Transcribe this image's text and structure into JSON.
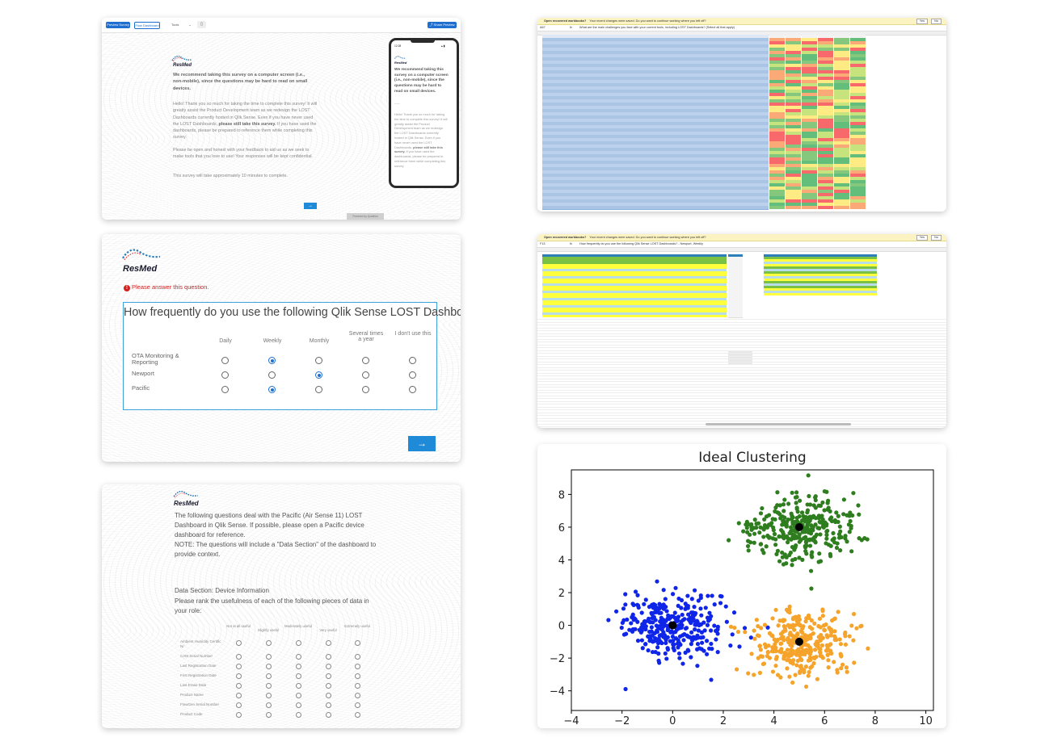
{
  "panel1": {
    "toolbar": {
      "preview_survey": "Preview Survey",
      "preview_dashboard": "Flow Dashboard",
      "device": "Tools",
      "share_preview": "Share Preview"
    },
    "brand": "ResMed",
    "heading": "We recommend taking this survey on a computer screen (i.e., non-mobile), since the questions may be hard to read on small devices.",
    "dashes": "-----",
    "intro_a": "Hello! Thank you so much for taking the time to complete this survey! It will greatly assist the Product Development team as we redesign the LOST Dashboards currently hosted in Qlik Sense. Even if you have never used the LOST Dashboards,",
    "intro_bold": "please still take this survey.",
    "intro_c": "If you have used the dashboards, please be prepared to reference them while completing this survey.",
    "para2": "Please be open and honest with your feedback to aid us as we seek to make tools that you love to use! Your responses will be kept confidential.",
    "para3": "This survey will take approximately 10 minutes to complete.",
    "next_arrow": "→",
    "footer_badge": "Powered by Qualtrics",
    "phone": {
      "time": "12:28",
      "brand": "ResMed",
      "heading": "We recommend taking this survey on a computer screen (i.e., non-mobile), since the questions may be hard to read on small devices.",
      "dashes": "-----",
      "intro_a": "Hello! Thank you so much for taking the time to complete this survey! It will greatly assist the Product Development team as we redesign the LOST Dashboards currently hosted in Qlik Sense. Even if you have never used the LOST Dashboards,",
      "intro_bold": "please still take this survey.",
      "intro_c": "If you have used the dashboards, please be prepared to reference them while completing this survey."
    }
  },
  "excel1": {
    "banner_title": "Open recovered workbooks?",
    "banner_text": "Your recent changes were saved. Do you want to continue working where you left off?",
    "yes": "Yes",
    "no": "No",
    "cell_ref": "A67",
    "fx": "fx",
    "formula": "What are the main challenges you face with your current tools, including LOST Dashboards? (Select all that apply)"
  },
  "survey2": {
    "brand": "ResMed",
    "error": "Please answer this question.",
    "question": "How frequently do you use the following Qlik Sense LOST Dashboards?",
    "columns": [
      "Daily",
      "Weekly",
      "Monthly",
      "Several times a year",
      "I don't use this"
    ],
    "rows": [
      {
        "label": "OTA Monitoring & Reporting",
        "selected": 1
      },
      {
        "label": "Newport",
        "selected": 2
      },
      {
        "label": "Pacific",
        "selected": 1
      }
    ],
    "next_arrow": "→"
  },
  "excel2": {
    "banner_title": "Open recovered workbooks?",
    "banner_text": "Your recent changes were saved. Do you want to continue working where you left off?",
    "yes": "Yes",
    "no": "No",
    "cell_ref": "F13",
    "fx": "fx",
    "formula": "How frequently do you use the following Qlik Sense LOST Dashboards? - Newport, Weekly"
  },
  "survey3": {
    "brand": "ResMed",
    "intro": "The following questions deal with the Pacific (Air Sense 11) LOST Dashboard in Qlik Sense. If possible, please open a Pacific device dashboard for reference.",
    "note": "NOTE: The questions will include a \"Data Section\" of the dashboard to provide context.",
    "section_title": "Data Section: Device Information",
    "section_prompt": "Please rank the usefulness of each of the following pieces of data in your role:",
    "columns": [
      "Not at all useful",
      "Slightly useful",
      "Moderately useful",
      "Very useful",
      "Extremely useful"
    ],
    "rows": [
      "Ambient Humidity Certific N/",
      "CAM Serial Number",
      "Last Registration Date",
      "First Registration Date",
      "Last Erase Date",
      "Product Name",
      "FlowGen Serial Number",
      "Product Code"
    ]
  },
  "chart_data": {
    "type": "scatter",
    "title": "Ideal Clustering",
    "xlabel": "",
    "ylabel": "",
    "xlim": [
      -4,
      10.3
    ],
    "ylim": [
      -5.2,
      9.5
    ],
    "xticks": [
      -4,
      -2,
      0,
      2,
      4,
      6,
      8,
      10
    ],
    "yticks": [
      -4,
      -2,
      0,
      2,
      4,
      6,
      8
    ],
    "grid": false,
    "series": [
      {
        "color": "#2e7d1e",
        "center": [
          5,
          6
        ],
        "spread": 1.0,
        "n": 330
      },
      {
        "color": "#0f25e8",
        "center": [
          0,
          0
        ],
        "spread": 1.0,
        "n": 330
      },
      {
        "color": "#f5a32a",
        "center": [
          5,
          -1
        ],
        "spread": 1.0,
        "n": 330
      }
    ],
    "centroids": [
      [
        5,
        6
      ],
      [
        0,
        0
      ],
      [
        5,
        -1
      ]
    ],
    "centroid_color": "#000000"
  }
}
